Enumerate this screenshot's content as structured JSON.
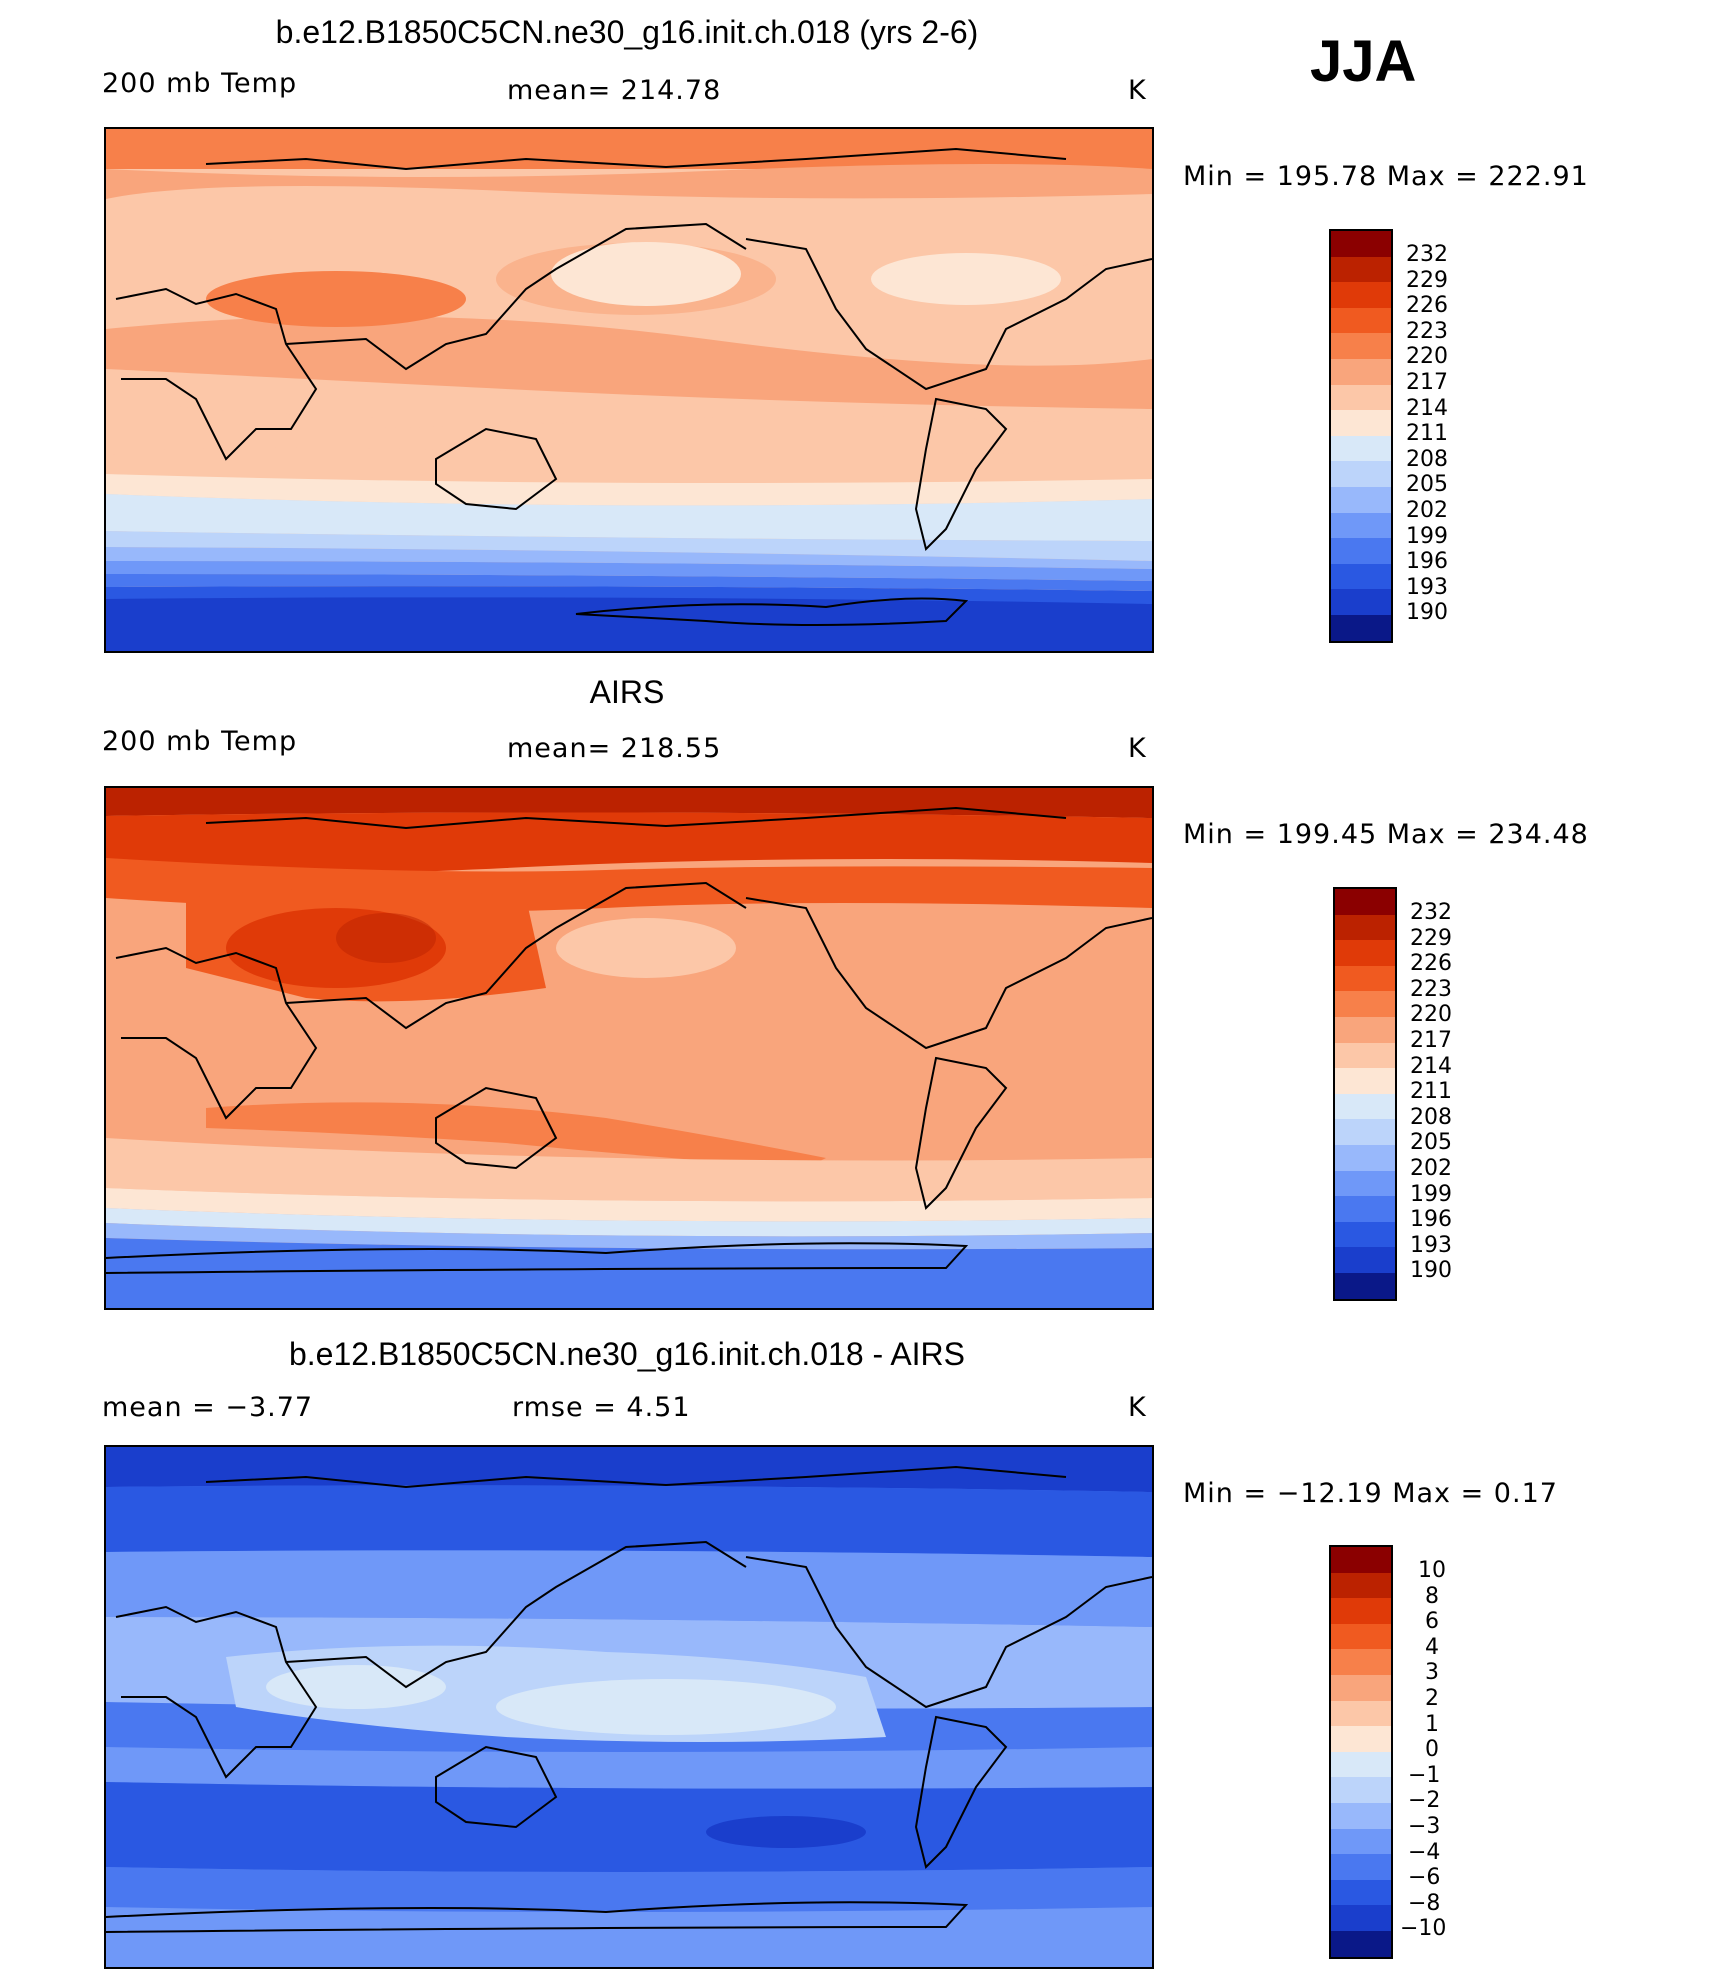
{
  "season": "JJA",
  "colors": {
    "warm_scale": [
      "#8b0000",
      "#bb2200",
      "#e03a08",
      "#f05a20",
      "#f7804a",
      "#f9a57c",
      "#fcc7a8",
      "#fde6d4",
      "#d8e8f8",
      "#bcd4fa",
      "#98b8fb",
      "#6f98f8",
      "#4a78f0",
      "#2a58e2",
      "#1a3ecc",
      "#0f2aa8",
      "#0a1888"
    ]
  },
  "panels": [
    {
      "title": "b.e12.B1850C5CN.ne30_g16.init.ch.018 (yrs 2-6)",
      "left_label": "200 mb Temp",
      "center_label": "mean=  214.78",
      "units": "K",
      "minmax": "Min  =  195.78  Max  =  222.91",
      "colorbar_labels": [
        "232",
        "229",
        "226",
        "223",
        "220",
        "217",
        "214",
        "211",
        "208",
        "205",
        "202",
        "199",
        "196",
        "193",
        "190"
      ]
    },
    {
      "title": "AIRS",
      "left_label": "200 mb Temp",
      "center_label": "mean=  218.55",
      "units": "K",
      "minmax": "Min  =  199.45  Max  =  234.48",
      "colorbar_labels": [
        "232",
        "229",
        "226",
        "223",
        "220",
        "217",
        "214",
        "211",
        "208",
        "205",
        "202",
        "199",
        "196",
        "193",
        "190"
      ]
    },
    {
      "title": "b.e12.B1850C5CN.ne30_g16.init.ch.018 - AIRS",
      "left_label": "mean  =    −3.77",
      "center_label": "rmse  =     4.51",
      "units": "K",
      "minmax": "Min  =  −12.19  Max  =     0.17",
      "colorbar_labels": [
        "10",
        "8",
        "6",
        "4",
        "3",
        "2",
        "1",
        "0",
        "−1",
        "−2",
        "−3",
        "−4",
        "−6",
        "−8",
        "−10"
      ]
    }
  ]
}
